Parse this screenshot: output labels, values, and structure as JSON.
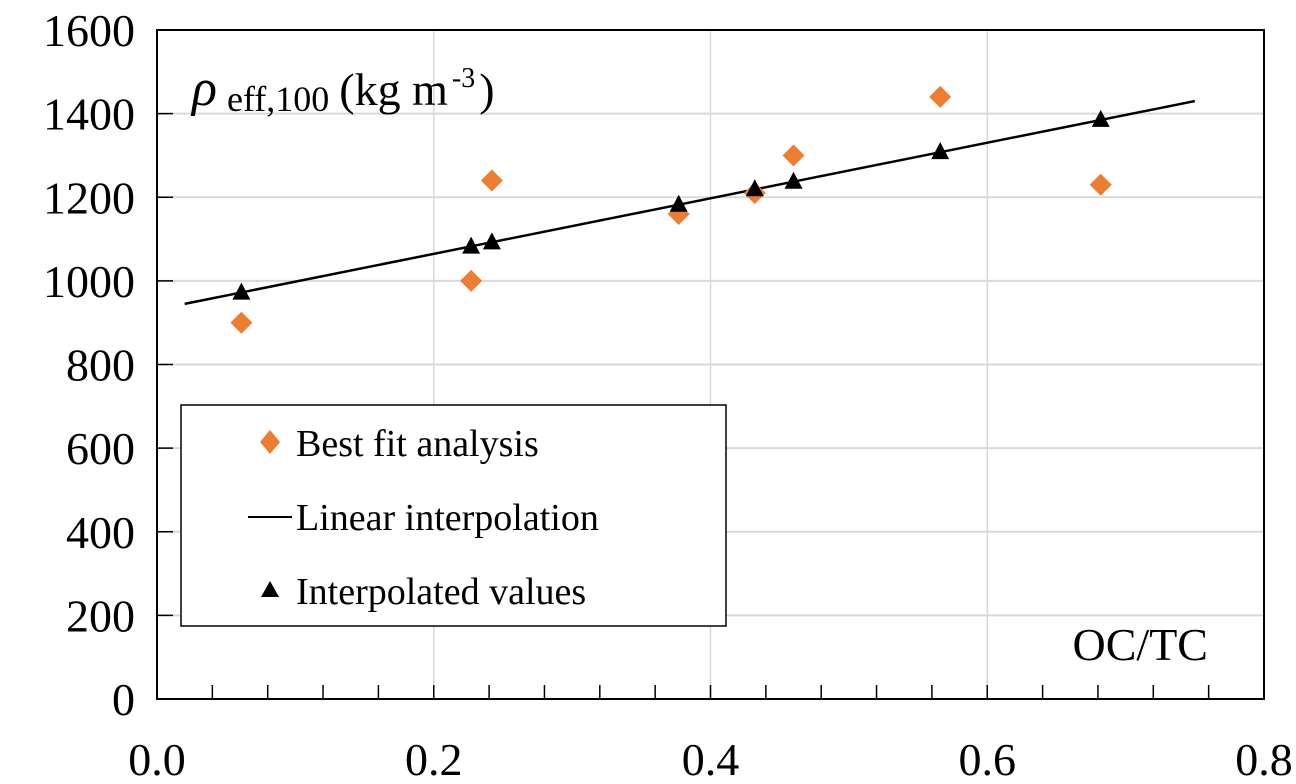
{
  "chart_data": {
    "type": "scatter",
    "title": "",
    "ylabel_annotation": {
      "symbol": "ρ",
      "subscript": "eff,100",
      "unit_main": "(kg m",
      "unit_sup": "-3",
      "unit_close": ")"
    },
    "xlabel_annotation": "OC/TC",
    "xlim": [
      0.0,
      0.8
    ],
    "ylim": [
      0,
      1600
    ],
    "x_ticks": [
      0.0,
      0.2,
      0.4,
      0.6,
      0.8
    ],
    "x_tick_labels": [
      "0.0",
      "0.2",
      "0.4",
      "0.6",
      "0.8"
    ],
    "x_minor_step": 0.04,
    "y_ticks": [
      0,
      200,
      400,
      600,
      800,
      1000,
      1200,
      1400,
      1600
    ],
    "y_tick_labels": [
      "0",
      "200",
      "400",
      "600",
      "800",
      "1000",
      "1200",
      "1400",
      "1600"
    ],
    "grid": true,
    "legend_position": "center-left",
    "series": [
      {
        "name": "Best fit analysis",
        "kind": "scatter",
        "marker": "diamond",
        "color": "#ED7D31",
        "x": [
          0.061,
          0.227,
          0.242,
          0.377,
          0.432,
          0.46,
          0.566,
          0.682
        ],
        "y": [
          900,
          1000,
          1240,
          1160,
          1210,
          1300,
          1440,
          1230
        ]
      },
      {
        "name": "Linear interpolation",
        "kind": "line",
        "color": "#000000",
        "x": [
          0.02,
          0.75
        ],
        "y": [
          945,
          1430
        ]
      },
      {
        "name": "Interpolated values",
        "kind": "scatter",
        "marker": "triangle",
        "color": "#000000",
        "x": [
          0.061,
          0.227,
          0.242,
          0.377,
          0.432,
          0.46,
          0.566,
          0.682
        ],
        "y": [
          972,
          1082,
          1092,
          1182,
          1219,
          1237,
          1308,
          1385
        ]
      }
    ]
  }
}
